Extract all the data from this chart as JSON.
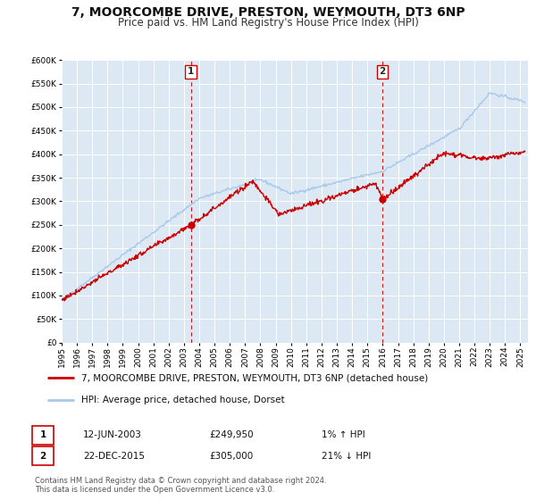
{
  "title": "7, MOORCOMBE DRIVE, PRESTON, WEYMOUTH, DT3 6NP",
  "subtitle": "Price paid vs. HM Land Registry's House Price Index (HPI)",
  "ylim": [
    0,
    600000
  ],
  "yticks": [
    0,
    50000,
    100000,
    150000,
    200000,
    250000,
    300000,
    350000,
    400000,
    450000,
    500000,
    550000,
    600000
  ],
  "xlim_start": 1995.0,
  "xlim_end": 2025.5,
  "background_color": "#ffffff",
  "plot_bg_color": "#dce9f5",
  "grid_color": "#ffffff",
  "hpi_line_color": "#a8c8e8",
  "price_line_color": "#cc0000",
  "sale1_date": 2003.45,
  "sale1_price": 249950,
  "sale2_date": 2015.975,
  "sale2_price": 305000,
  "legend_line1": "7, MOORCOMBE DRIVE, PRESTON, WEYMOUTH, DT3 6NP (detached house)",
  "legend_line2": "HPI: Average price, detached house, Dorset",
  "table_row1": [
    "1",
    "12-JUN-2003",
    "£249,950",
    "1% ↑ HPI"
  ],
  "table_row2": [
    "2",
    "22-DEC-2015",
    "£305,000",
    "21% ↓ HPI"
  ],
  "footnote1": "Contains HM Land Registry data © Crown copyright and database right 2024.",
  "footnote2": "This data is licensed under the Open Government Licence v3.0.",
  "title_fontsize": 10,
  "subtitle_fontsize": 8.5,
  "tick_fontsize": 6.5,
  "legend_fontsize": 7.5,
  "table_fontsize": 7.5,
  "footnote_fontsize": 6.0
}
